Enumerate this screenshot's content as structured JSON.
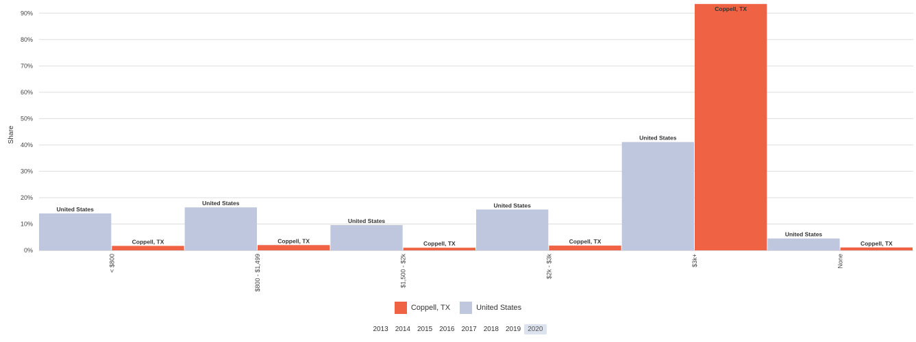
{
  "chart_data": {
    "type": "bar",
    "ylabel": "Share",
    "xlabel": "",
    "ylim": [
      0,
      0.95
    ],
    "yticks": [
      "0%",
      "10%",
      "20%",
      "30%",
      "40%",
      "50%",
      "60%",
      "70%",
      "80%",
      "90%"
    ],
    "categories": [
      "< $800",
      "$800 - $1,499",
      "$1,500 - $2k",
      "$2k - $3k",
      "$3k+",
      "None"
    ],
    "series": [
      {
        "name": "United States",
        "color": "#bfc7df",
        "values": [
          0.14,
          0.163,
          0.096,
          0.155,
          0.411,
          0.045
        ]
      },
      {
        "name": "Coppell, TX",
        "color": "#ef6344",
        "values": [
          0.017,
          0.02,
          0.01,
          0.018,
          0.935,
          0.011
        ]
      }
    ],
    "grid": true,
    "legend_position": "bottom"
  },
  "legend": [
    {
      "label": "Coppell, TX",
      "color": "#ef6344"
    },
    {
      "label": "United States",
      "color": "#bfc7df"
    }
  ],
  "years": {
    "items": [
      "2013",
      "2014",
      "2015",
      "2016",
      "2017",
      "2018",
      "2019",
      "2020"
    ],
    "selected": "2020"
  }
}
